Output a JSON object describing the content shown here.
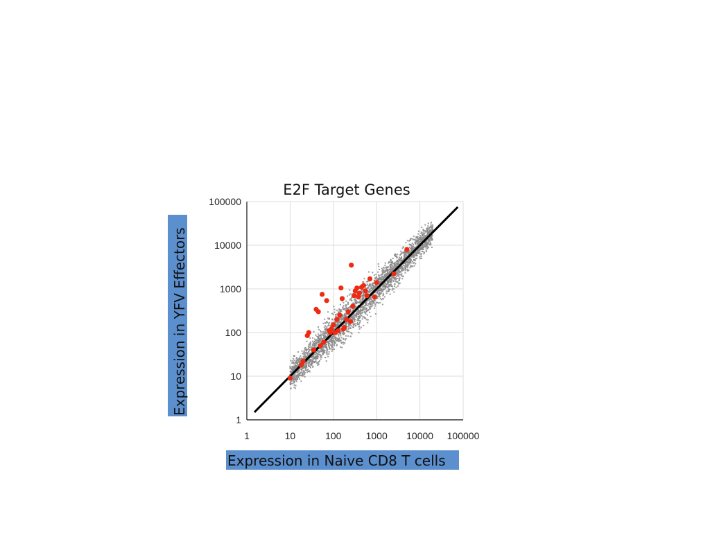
{
  "chart_data": {
    "type": "scatter",
    "title": "E2F Target Genes",
    "xlabel": "Expression in Naive CD8 T cells",
    "ylabel": "Expression in YFV Effectors",
    "xscale": "log",
    "yscale": "log",
    "xlim": [
      1,
      100000
    ],
    "ylim": [
      1,
      100000
    ],
    "x_ticks": [
      "1",
      "10",
      "100",
      "1000",
      "10000",
      "100000"
    ],
    "y_ticks": [
      "1",
      "10",
      "100",
      "1000",
      "10000",
      "100000"
    ],
    "grid": true,
    "colors": {
      "background_genes": "#8a8a8a",
      "e2f_targets": "#ee2a12",
      "diagonal": "#000000",
      "label_highlight": "#5b8fce"
    },
    "reference_line": {
      "type": "identity",
      "x": [
        1.5,
        75000
      ],
      "y": [
        1.5,
        75000
      ]
    },
    "series": [
      {
        "name": "",
        "color": "#ee2a12",
        "points": [
          [
            10,
            9
          ],
          [
            18,
            18
          ],
          [
            20,
            22
          ],
          [
            25,
            85
          ],
          [
            27,
            100
          ],
          [
            35,
            40
          ],
          [
            40,
            340
          ],
          [
            45,
            300
          ],
          [
            50,
            50
          ],
          [
            55,
            750
          ],
          [
            60,
            60
          ],
          [
            70,
            540
          ],
          [
            80,
            110
          ],
          [
            85,
            100
          ],
          [
            90,
            120
          ],
          [
            100,
            150
          ],
          [
            110,
            100
          ],
          [
            120,
            200
          ],
          [
            130,
            110
          ],
          [
            140,
            250
          ],
          [
            150,
            1050
          ],
          [
            160,
            600
          ],
          [
            170,
            120
          ],
          [
            180,
            130
          ],
          [
            200,
            200
          ],
          [
            220,
            300
          ],
          [
            250,
            180
          ],
          [
            260,
            3500
          ],
          [
            280,
            400
          ],
          [
            300,
            700
          ],
          [
            320,
            900
          ],
          [
            350,
            1050
          ],
          [
            380,
            650
          ],
          [
            400,
            800
          ],
          [
            450,
            1100
          ],
          [
            500,
            1200
          ],
          [
            550,
            900
          ],
          [
            600,
            700
          ],
          [
            700,
            1700
          ],
          [
            900,
            650
          ],
          [
            1000,
            1400
          ],
          [
            2500,
            2200
          ],
          [
            5000,
            8000
          ]
        ]
      }
    ]
  }
}
